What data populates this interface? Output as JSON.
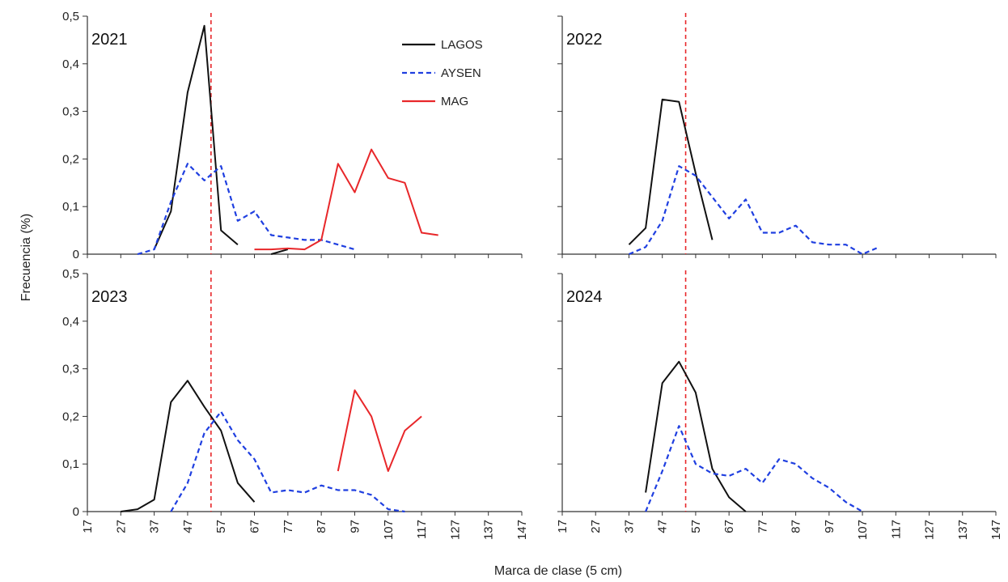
{
  "chart_data": {
    "type": "line",
    "ylabel": "Frecuencia (%)",
    "xlabel": "Marca de clase (5 cm)",
    "x_ticks": [
      17,
      27,
      37,
      47,
      57,
      67,
      77,
      87,
      97,
      107,
      117,
      127,
      137,
      147
    ],
    "y_ticks": [
      "0",
      "0,1",
      "0,2",
      "0,3",
      "0,4",
      "0,5"
    ],
    "xlim": [
      17,
      147
    ],
    "ylim": [
      0,
      0.5
    ],
    "grid": false,
    "legend": {
      "placement": "top-right of first panel",
      "entries": [
        {
          "name": "LAGOS",
          "color": "#111111",
          "dash": "solid"
        },
        {
          "name": "AYSEN",
          "color": "#1f3fe0",
          "dash": "dashed"
        },
        {
          "name": "MAG",
          "color": "#e8272a",
          "dash": "solid"
        }
      ]
    },
    "reference_line": {
      "x": 54,
      "color": "#e8272a",
      "style": "dashed"
    },
    "panels": [
      {
        "year": "2021",
        "series": [
          {
            "name": "LAGOS",
            "segments": [
              {
                "x": [
                  37,
                  42,
                  47,
                  52,
                  57,
                  62
                ],
                "y": [
                  0.01,
                  0.09,
                  0.34,
                  0.48,
                  0.05,
                  0.02
                ]
              },
              {
                "x": [
                  72,
                  77
                ],
                "y": [
                  0.0,
                  0.01
                ]
              }
            ]
          },
          {
            "name": "AYSEN",
            "segments": [
              {
                "x": [
                  32,
                  37,
                  42,
                  47,
                  52,
                  57,
                  62,
                  67,
                  72,
                  77,
                  82,
                  87,
                  92,
                  97
                ],
                "y": [
                  0.0,
                  0.01,
                  0.11,
                  0.19,
                  0.155,
                  0.185,
                  0.07,
                  0.09,
                  0.04,
                  0.035,
                  0.03,
                  0.03,
                  0.02,
                  0.01
                ]
              }
            ]
          },
          {
            "name": "MAG",
            "segments": [
              {
                "x": [
                  67,
                  72,
                  77,
                  82,
                  87,
                  92,
                  97,
                  102,
                  107,
                  112,
                  117,
                  122
                ],
                "y": [
                  0.01,
                  0.01,
                  0.012,
                  0.01,
                  0.03,
                  0.19,
                  0.13,
                  0.22,
                  0.16,
                  0.15,
                  0.045,
                  0.04
                ]
              }
            ]
          }
        ]
      },
      {
        "year": "2022",
        "series": [
          {
            "name": "LAGOS",
            "segments": [
              {
                "x": [
                  37,
                  42,
                  47,
                  52,
                  57,
                  62
                ],
                "y": [
                  0.02,
                  0.055,
                  0.325,
                  0.32,
                  0.17,
                  0.03
                ]
              }
            ]
          },
          {
            "name": "AYSEN",
            "segments": [
              {
                "x": [
                  37,
                  42,
                  47,
                  52,
                  57,
                  62,
                  67,
                  72,
                  77,
                  82,
                  87,
                  92,
                  97,
                  102,
                  107,
                  112
                ],
                "y": [
                  0.0,
                  0.015,
                  0.07,
                  0.185,
                  0.165,
                  0.12,
                  0.075,
                  0.115,
                  0.045,
                  0.045,
                  0.06,
                  0.025,
                  0.02,
                  0.02,
                  0.0,
                  0.015
                ]
              }
            ]
          }
        ]
      },
      {
        "year": "2023",
        "series": [
          {
            "name": "LAGOS",
            "segments": [
              {
                "x": [
                  27,
                  32,
                  37,
                  42,
                  47,
                  52,
                  57,
                  62,
                  67
                ],
                "y": [
                  0.0,
                  0.005,
                  0.025,
                  0.23,
                  0.275,
                  0.22,
                  0.17,
                  0.06,
                  0.02
                ]
              }
            ]
          },
          {
            "name": "AYSEN",
            "segments": [
              {
                "x": [
                  42,
                  47,
                  52,
                  57,
                  62,
                  67,
                  72,
                  77,
                  82,
                  87,
                  92,
                  97,
                  102,
                  107,
                  112
                ],
                "y": [
                  0.0,
                  0.06,
                  0.165,
                  0.21,
                  0.15,
                  0.11,
                  0.04,
                  0.045,
                  0.04,
                  0.055,
                  0.045,
                  0.045,
                  0.035,
                  0.005,
                  0.0
                ]
              }
            ]
          },
          {
            "name": "MAG",
            "segments": [
              {
                "x": [
                  92,
                  97,
                  102,
                  107,
                  112,
                  117
                ],
                "y": [
                  0.085,
                  0.255,
                  0.2,
                  0.085,
                  0.17,
                  0.2
                ]
              }
            ]
          }
        ]
      },
      {
        "year": "2024",
        "series": [
          {
            "name": "LAGOS",
            "segments": [
              {
                "x": [
                  42,
                  47,
                  52,
                  57,
                  62,
                  67,
                  72
                ],
                "y": [
                  0.04,
                  0.27,
                  0.315,
                  0.25,
                  0.09,
                  0.03,
                  0.0
                ]
              }
            ]
          },
          {
            "name": "AYSEN",
            "segments": [
              {
                "x": [
                  42,
                  47,
                  52,
                  57,
                  62,
                  67,
                  72,
                  77,
                  82,
                  87,
                  92,
                  97,
                  102,
                  107
                ],
                "y": [
                  0.0,
                  0.085,
                  0.18,
                  0.1,
                  0.08,
                  0.075,
                  0.09,
                  0.06,
                  0.11,
                  0.1,
                  0.07,
                  0.05,
                  0.02,
                  0.0
                ]
              }
            ]
          }
        ]
      }
    ]
  }
}
